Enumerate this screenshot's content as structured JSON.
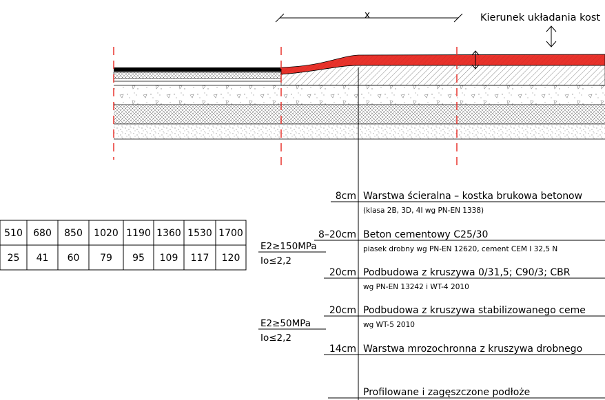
{
  "dimension": {
    "label": "x",
    "direction_label": "Kierunek układania kost"
  },
  "layers": [
    {
      "thickness": "8cm",
      "name": "Warstwa ścieralna – kostka brukowa betonow",
      "note": "(klasa 2B, 3D, 4I wg PN-EN 1338)"
    },
    {
      "thickness": "8–20cm",
      "name": "Beton cementowy C25/30",
      "note": "piasek drobny wg PN-EN 12620, cement CEM I 32,5 N"
    },
    {
      "thickness": "20cm",
      "name": "Podbudowa z kruszywa 0/31,5; C90/3; CBR",
      "note": "wg PN-EN 13242 i WT-4 2010"
    },
    {
      "thickness": "20cm",
      "name": "Podbudowa z kruszywa stabilizowanego ceme",
      "note": "wg WT-5 2010"
    },
    {
      "thickness": "14cm",
      "name": "Warstwa mrozochronna z kruszywa drobnego",
      "note": ""
    },
    {
      "thickness": "",
      "name": "Profilowane i zagęszczone podłoże",
      "note": ""
    }
  ],
  "params": [
    {
      "e2": "E2≥150MPa",
      "io": "Io≤2,2"
    },
    {
      "e2": "E2≥50MPa",
      "io": "Io≤2,2"
    }
  ],
  "table": {
    "row1": [
      "510",
      "680",
      "850",
      "1020",
      "1190",
      "1360",
      "1530",
      "1700"
    ],
    "row2": [
      "25",
      "41",
      "60",
      "79",
      "95",
      "109",
      "117",
      "120"
    ]
  },
  "colors": {
    "highlight": "#e8322b",
    "cut_line": "#e8322b",
    "asphalt": "#000000"
  }
}
